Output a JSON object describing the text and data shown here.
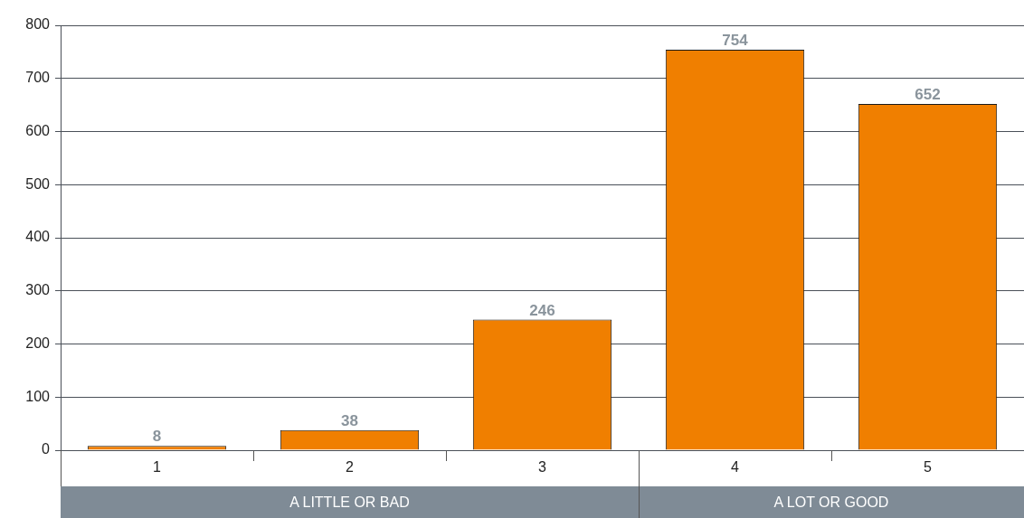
{
  "chart_data": {
    "type": "bar",
    "categories": [
      "1",
      "2",
      "3",
      "4",
      "5"
    ],
    "values": [
      8,
      38,
      246,
      754,
      652
    ],
    "color": "#f07f00",
    "ylim": [
      0,
      800
    ],
    "yticks": [
      0,
      100,
      200,
      300,
      400,
      500,
      600,
      700,
      800
    ],
    "grid": "y",
    "data_labels": true,
    "legend": false,
    "annotations": [
      "A LITTLE OR BAD",
      "A LOT OR GOOD"
    ]
  }
}
